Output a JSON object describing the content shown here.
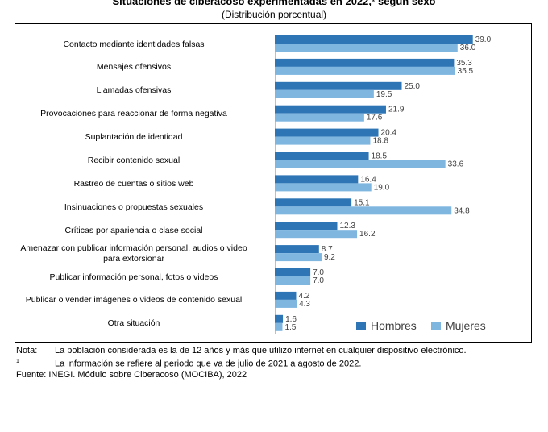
{
  "title": "Situaciones de ciberacoso experimentadas en 2022,¹ según sexo",
  "subtitle": "(Distribución porcentual)",
  "colors": {
    "hombres": "#2e75b6",
    "mujeres": "#7eb6e0"
  },
  "chart_data": {
    "type": "bar",
    "orientation": "horizontal",
    "categories": [
      "Contacto mediante identidades falsas",
      "Mensajes ofensivos",
      "Llamadas ofensivas",
      "Provocaciones para reaccionar de forma negativa",
      "Suplantación de identidad",
      "Recibir contenido sexual",
      "Rastreo de cuentas o sitios web",
      "Insinuaciones o propuestas sexuales",
      "Críticas por apariencia o clase social",
      "Amenazar con publicar información personal, audios o video para extorsionar",
      "Publicar información personal, fotos o videos",
      "Publicar o vender imágenes o videos de contenido sexual",
      "Otra situación"
    ],
    "series": [
      {
        "name": "Hombres",
        "values": [
          39.0,
          35.3,
          25.0,
          21.9,
          20.4,
          18.5,
          16.4,
          15.1,
          12.3,
          8.7,
          7.0,
          4.2,
          1.6
        ]
      },
      {
        "name": "Mujeres",
        "values": [
          36.0,
          35.5,
          19.5,
          17.6,
          18.8,
          33.6,
          19.0,
          34.8,
          16.2,
          9.2,
          7.0,
          4.3,
          1.5
        ]
      }
    ],
    "value_labels": {
      "Hombres": [
        "39.0",
        "35.3",
        "25.0",
        "21.9",
        "20.4",
        "18.5",
        "16.4",
        "15.1",
        "12.3",
        "8.7",
        "7.0",
        "4.2",
        "1.6"
      ],
      "Mujeres": [
        "36.0",
        "35.5",
        "19.5",
        "17.6",
        "18.8",
        "33.6",
        "19.0",
        "34.8",
        "16.2",
        "9.2",
        "7.0",
        "4.3",
        "1.5"
      ]
    },
    "legend": [
      "Hombres",
      "Mujeres"
    ],
    "legend_position": "bottom-right",
    "grid": false
  },
  "notes": {
    "nota_label": "Nota:",
    "nota_text": "La población considerada es la de 12 años y más que utilizó internet en cualquier dispositivo electrónico.",
    "footnote_mark": "1",
    "footnote_text": "La información se refiere al periodo que va de julio de 2021 a agosto de 2022.",
    "source": "Fuente: INEGI. Módulo sobre Ciberacoso (MOCIBA), 2022"
  }
}
